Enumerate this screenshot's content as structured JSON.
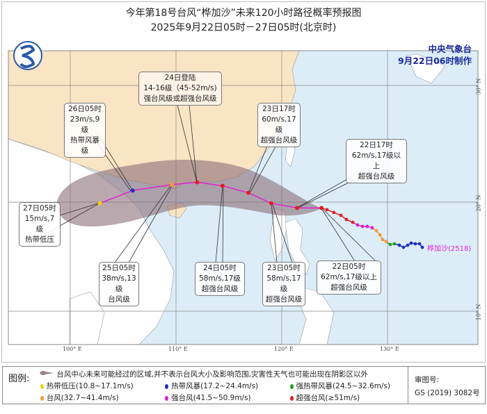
{
  "title": "今年第18号台风“桦加沙”未来120小时路径概率预报图",
  "subtitle": "2025年9月22日05时－27日05时(北京时)",
  "agency": "中央气象台",
  "issued": "9月22日06时制作",
  "typhoon_name": "桦加沙(2518)",
  "axes": {
    "lon_labels": [
      "100° E",
      "110° E",
      "120° E",
      "130° E"
    ],
    "lat_labels": [
      "30° N",
      "20° N",
      "10° N"
    ]
  },
  "colors": {
    "sea": "#dcedf8",
    "china": "#f9e4c4",
    "land": "#ffffff",
    "cone": "#8a6e78",
    "track": "#e020d0",
    "TD": "#f0d000",
    "TS": "#2030c0",
    "STS": "#2a9a2a",
    "TY": "#f59a3a",
    "STY": "#e020d0",
    "SuperTY": "#e02020"
  },
  "forecast": [
    {
      "lon": 123.75,
      "lat": 19.5,
      "cat": "SuperTY"
    },
    {
      "lon": 121.45,
      "lat": 19.5,
      "cat": "SuperTY"
    },
    {
      "lon": 119.0,
      "lat": 19.9,
      "cat": "SuperTY"
    },
    {
      "lon": 116.85,
      "lat": 20.8,
      "cat": "SuperTY"
    },
    {
      "lon": 114.4,
      "lat": 21.4,
      "cat": "SuperTY"
    },
    {
      "lon": 112.0,
      "lat": 21.7,
      "cat": "SuperTY"
    },
    {
      "lon": 109.6,
      "lat": 21.5,
      "cat": "TY"
    },
    {
      "lon": 105.9,
      "lat": 21.0,
      "cat": "TS"
    },
    {
      "lon": 102.8,
      "lat": 19.9,
      "cat": "TD"
    }
  ],
  "past_track": [
    [
      133.29,
      16.13,
      "TS"
    ],
    [
      133.03,
      16.43,
      "TS"
    ],
    [
      132.63,
      16.43,
      "TS"
    ],
    [
      132.24,
      16.49,
      "TS"
    ],
    [
      131.91,
      16.31,
      "TS"
    ],
    [
      131.51,
      16.13,
      "TS"
    ],
    [
      131.12,
      16.31,
      "TS"
    ],
    [
      130.66,
      16.43,
      "STS"
    ],
    [
      130.26,
      16.37,
      "STS"
    ],
    [
      129.87,
      16.61,
      "TY"
    ],
    [
      129.54,
      16.79,
      "TY"
    ],
    [
      129.28,
      17.2,
      "TY"
    ],
    [
      128.95,
      17.56,
      "TY"
    ],
    [
      128.55,
      17.8,
      "STY"
    ],
    [
      128.09,
      17.92,
      "STY"
    ],
    [
      127.63,
      17.92,
      "STY"
    ],
    [
      127.17,
      18.04,
      "STY"
    ],
    [
      126.71,
      18.27,
      "SuperTY"
    ],
    [
      126.12,
      18.51,
      "SuperTY"
    ],
    [
      125.59,
      18.87,
      "SuperTY"
    ],
    [
      124.93,
      19.11,
      "SuperTY"
    ],
    [
      124.28,
      19.35,
      "SuperTY"
    ],
    [
      123.75,
      19.5,
      "SuperTY"
    ]
  ],
  "labels": {
    "d26": [
      "26日05时",
      "23m/s,9级",
      "热带风暴级"
    ],
    "landfall": [
      "24日登陆",
      "14-16级（45-52m/s)",
      "强台风级或超强台风级"
    ],
    "d23_17": [
      "23日17时",
      "60m/s,17级",
      "超强台风级"
    ],
    "d22_17": [
      "22日17时",
      "62m/s,17级以上",
      "超强台风级"
    ],
    "d27": [
      "27日05时",
      "15m/s,7级",
      "热带低压"
    ],
    "d25": [
      "25日05时",
      "38m/s,13级",
      "台风级"
    ],
    "d24": [
      "24日05时",
      "58m/s,17级",
      "超强台风级"
    ],
    "d23": [
      "23日05时",
      "58m/s,17级",
      "超强台风级"
    ],
    "d22": [
      "22日05时",
      "62m/s,17级以上",
      "超强台风级"
    ]
  },
  "legend": {
    "title": "图例:",
    "cone": "台风中心未来可能经过的区域,并不表示台风大小及影响范围,灾害性天气也可能出现在阴影区以外",
    "items": [
      {
        "label": "热带低压(10.8~17.1m/s)",
        "cat": "TD"
      },
      {
        "label": "热带风暴(17.2~24.4m/s)",
        "cat": "TS"
      },
      {
        "label": "强热带风暴(24.5~32.6m/s)",
        "cat": "STS"
      },
      {
        "label": "台风(32.7~41.4m/s)",
        "cat": "TY"
      },
      {
        "label": "强台风(41.5~50.9m/s)",
        "cat": "STY"
      },
      {
        "label": "超强台风(≥51m/s)",
        "cat": "SuperTY"
      }
    ],
    "review_label": "审图号:",
    "review_no": "GS (2019) 3082号"
  }
}
